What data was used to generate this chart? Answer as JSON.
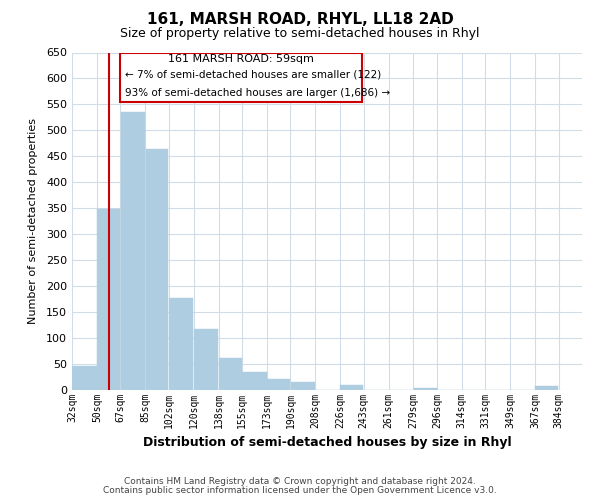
{
  "title": "161, MARSH ROAD, RHYL, LL18 2AD",
  "subtitle": "Size of property relative to semi-detached houses in Rhyl",
  "xlabel": "Distribution of semi-detached houses by size in Rhyl",
  "ylabel": "Number of semi-detached properties",
  "bar_left_edges": [
    32,
    50,
    67,
    85,
    102,
    120,
    138,
    155,
    173,
    190,
    208,
    226,
    243,
    261,
    279,
    296,
    314,
    331,
    349,
    367
  ],
  "bar_heights": [
    47,
    348,
    535,
    465,
    178,
    118,
    62,
    35,
    22,
    15,
    0,
    10,
    0,
    0,
    3,
    0,
    0,
    0,
    0,
    8
  ],
  "bar_widths": [
    18,
    17,
    18,
    17,
    18,
    18,
    17,
    18,
    17,
    18,
    18,
    17,
    18,
    18,
    17,
    18,
    17,
    18,
    18,
    17
  ],
  "tick_labels": [
    "32sqm",
    "50sqm",
    "67sqm",
    "85sqm",
    "102sqm",
    "120sqm",
    "138sqm",
    "155sqm",
    "173sqm",
    "190sqm",
    "208sqm",
    "226sqm",
    "243sqm",
    "261sqm",
    "279sqm",
    "296sqm",
    "314sqm",
    "331sqm",
    "349sqm",
    "367sqm",
    "384sqm"
  ],
  "tick_positions": [
    32,
    50,
    67,
    85,
    102,
    120,
    138,
    155,
    173,
    190,
    208,
    226,
    243,
    261,
    279,
    296,
    314,
    331,
    349,
    367,
    384
  ],
  "bar_color": "#aecde1",
  "marker_x": 59,
  "marker_color": "#cc0000",
  "ylim": [
    0,
    650
  ],
  "xlim": [
    32,
    401
  ],
  "yticks": [
    0,
    50,
    100,
    150,
    200,
    250,
    300,
    350,
    400,
    450,
    500,
    550,
    600,
    650
  ],
  "annotation_title": "161 MARSH ROAD: 59sqm",
  "annotation_line1": "← 7% of semi-detached houses are smaller (122)",
  "annotation_line2": "93% of semi-detached houses are larger (1,686) →",
  "footer_line1": "Contains HM Land Registry data © Crown copyright and database right 2024.",
  "footer_line2": "Contains public sector information licensed under the Open Government Licence v3.0.",
  "background_color": "#ffffff",
  "grid_color": "#d0dce8"
}
